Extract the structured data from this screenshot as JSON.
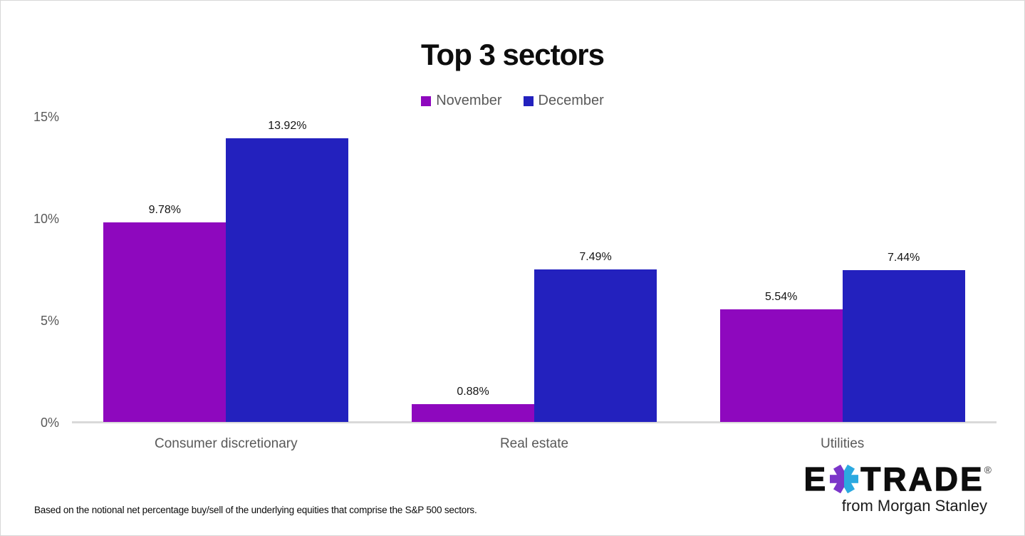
{
  "chart_data": {
    "type": "bar",
    "title": "Top 3 sectors",
    "categories": [
      "Consumer discretionary",
      "Real estate",
      "Utilities"
    ],
    "series": [
      {
        "name": "November",
        "color": "#8E08BE",
        "values": [
          9.78,
          0.88,
          5.54
        ]
      },
      {
        "name": "December",
        "color": "#2321BE",
        "values": [
          13.92,
          7.49,
          7.44
        ]
      }
    ],
    "value_label_suffix": "%",
    "y_ticks": [
      {
        "value": 0,
        "label": "0%"
      },
      {
        "value": 5,
        "label": "5%"
      },
      {
        "value": 10,
        "label": "10%"
      },
      {
        "value": 15,
        "label": "15%"
      }
    ],
    "ylim": [
      0,
      15
    ],
    "grid": false,
    "legend_position": "top"
  },
  "footer": {
    "note": "Based on the notional net percentage buy/sell of the underlying equities that comprise the S&P 500 sectors."
  },
  "logo": {
    "prefix": "E",
    "suffix": "TRADE",
    "registered": "®",
    "tagline": "from Morgan Stanley",
    "asterisk_purple": "#7B35C9",
    "asterisk_cyan": "#2BA9E0"
  }
}
